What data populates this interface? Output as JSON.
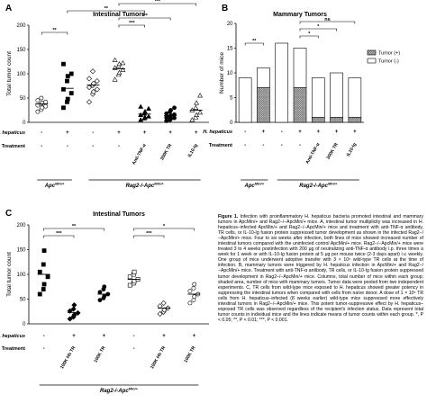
{
  "panels": {
    "A": {
      "letter": "A",
      "title": "Intestinal Tumors",
      "ylabel": "Total tumor count",
      "row1_label": "H. hepaticus",
      "row2_label": "Treatment",
      "h_hepaticus": [
        "-",
        "+",
        "-",
        "+",
        "+",
        "+",
        "+"
      ],
      "treatment": [
        "-",
        "-",
        "-",
        "-",
        "Anti-TNF-α",
        "300K TR",
        "IL10-Ig"
      ],
      "group_labels": [
        {
          "text": "Apc",
          "sup": "Min/+",
          "from": 0,
          "to": 1
        },
        {
          "text": "Rag2-/-Apc",
          "sup": "Min/+",
          "from": 2,
          "to": 6
        }
      ],
      "sig": [
        {
          "from": 0,
          "to": 1,
          "label": "**",
          "level": 0
        },
        {
          "from": 1,
          "to": 4,
          "label": "**",
          "level": 3
        },
        {
          "from": 3,
          "to": 4,
          "label": "***",
          "level": 1
        },
        {
          "from": 3,
          "to": 5,
          "label": "***",
          "level": 2
        },
        {
          "from": 3,
          "to": 6,
          "label": "***",
          "level": 4
        }
      ]
    },
    "B": {
      "letter": "B",
      "title": "Mammary Tumors",
      "ylabel": "Number of mice",
      "row1_label": "H. hepaticus",
      "row2_label": "Treatment",
      "h_hepaticus": [
        "-",
        "+",
        "-",
        "+",
        "+",
        "+",
        "+"
      ],
      "treatment": [
        "-",
        "-",
        "-",
        "-",
        "Anti-TNF-α",
        "300K TR",
        "IL10-Ig"
      ],
      "group_labels": [
        {
          "text": "Apc",
          "sup": "Min/+",
          "from": 0,
          "to": 1
        },
        {
          "text": "Rag2-/-Apc",
          "sup": "Min/+",
          "from": 2,
          "to": 6
        }
      ],
      "legend": {
        "pos": "Tumor (+)",
        "neg": "Tumor (-)"
      },
      "sig": [
        {
          "from": 0,
          "to": 1,
          "label": "**",
          "level": 0
        },
        {
          "from": 3,
          "to": 4,
          "label": "*",
          "level": 1
        },
        {
          "from": 3,
          "to": 5,
          "label": "*",
          "level": 2
        },
        {
          "from": 3,
          "to": 6,
          "label": "ns",
          "level": 3
        }
      ]
    },
    "C": {
      "letter": "C",
      "title": "Intestinal Tumors",
      "ylabel": "Total tumor count",
      "row1_label": "H. hepaticus",
      "row2_label": "Treatment",
      "h_hepaticus": [
        "-",
        "+",
        "+",
        "-",
        "+",
        "+"
      ],
      "treatment": [
        "-",
        "100K Hh TR",
        "100K TR",
        "-",
        "100K Hh TR",
        "100K TR"
      ],
      "group_labels": [
        {
          "text": "Rag2-/-Apc",
          "sup": "Min/+",
          "from": 0,
          "to": 5
        }
      ],
      "sig": [
        {
          "from": 0,
          "to": 1,
          "label": "***",
          "level": 0
        },
        {
          "from": 0,
          "to": 2,
          "label": "**",
          "level": 1
        },
        {
          "from": 3,
          "to": 4,
          "label": "***",
          "level": 0
        },
        {
          "from": 3,
          "to": 5,
          "label": "*",
          "level": 1
        }
      ]
    }
  },
  "caption": {
    "fig_num": "Figure 1.",
    "text": "Infection with proinflammatory H. hepaticus bacteria promoted intestinal and mammary tumors in ApcMin/+ and Rag2−/−ApcMin/+ mice. A, intestinal tumor multiplicity was increased in H. hepaticus–infected ApcMin/+ and Rag2−/−ApcMin/+ mice and treatment with anti-TNF-α antibody, TR cells, or IL-10-Ig fusion protein suppressed tumor development as shown in the infected Rag2−/−ApcMin/+ mice. Four to six weeks after infection, both lines of mice showed increased number of intestinal tumors compared with the uninfected control ApcMin/+ mice. Rag2−/−ApcMin/+ mice were treated 3 to 4 weeks postinfection with 200 μg of neutralizing anti-TNF-α antibody i.p. three times a week for 1 week or with IL-10-Ig fusion protein at 5 μg per mouse twice (2-3 days apart) i.v. weekly. One group of mice underwent adoptive transfer with 3 × 10⁵ wild-type TR cells at the time of infection. B, mammary tumors were triggered by H. hepaticus infection in ApcMin/+ and Rag2−/−ApcMin/+ mice. Treatment with anti-TNF-α antibody, TR cells, or IL-10-Ig fusion protein suppressed tumor development in Rag2−/−ApcMin/+ mice. Columns, total number of mice within each group; shaded area, number of mice with mammary tumors. Tumor data were pooled from two independent experiments. C, TR cells from wild-type mice exposed to H. hepaticus showed greater potency in suppressing the intestinal tumors when compared with cells from naïve donor. A dose of 1 × 10⁵ TR cells from H. hepaticus–infected (8 weeks earlier) wild-type mice suppressed more effectively intestinal tumors in Rag2−/−ApcMin/+ mice. This potent tumor-suppressive effect by H. hepaticus–exposed TR cells was observed regardless of the recipient's infection status. Data represent total tumor counts in individual mice and the lines indicate means of tumor counts within each group. *, P < 0.05; **, P < 0.01; ***, P < 0.001."
  },
  "colors": {
    "ink": "#000000",
    "hatch": "#555555",
    "open": "#ffffff"
  },
  "chart_data": [
    {
      "type": "scatter",
      "id": "A",
      "title": "Intestinal Tumors",
      "ylabel": "Total tumor count",
      "ylim": [
        0,
        200
      ],
      "yticks": [
        0,
        50,
        100,
        150,
        200
      ],
      "grid": false,
      "groups": [
        {
          "marker": "circle-open",
          "mean": 38,
          "values": [
            22,
            26,
            30,
            33,
            35,
            38,
            40,
            42,
            45,
            50
          ]
        },
        {
          "marker": "square-filled",
          "mean": 70,
          "values": [
            30,
            42,
            48,
            60,
            68,
            85,
            95,
            100,
            120
          ]
        },
        {
          "marker": "diamond-open",
          "mean": 77,
          "values": [
            42,
            58,
            63,
            68,
            72,
            76,
            80,
            85,
            90,
            105
          ]
        },
        {
          "marker": "triangle-open",
          "mean": 110,
          "values": [
            88,
            98,
            102,
            108,
            112,
            116,
            120,
            122,
            128
          ]
        },
        {
          "marker": "triangle-filled",
          "mean": 17,
          "values": [
            5,
            8,
            10,
            12,
            15,
            18,
            22,
            28,
            32
          ]
        },
        {
          "marker": "circle-filled",
          "mean": 14,
          "values": [
            3,
            5,
            7,
            9,
            10,
            12,
            14,
            16,
            18,
            22,
            25,
            30
          ]
        },
        {
          "marker": "triangle-open",
          "mean": 25,
          "values": [
            5,
            10,
            15,
            20,
            25,
            30,
            40,
            55
          ]
        }
      ]
    },
    {
      "type": "bar",
      "id": "B",
      "title": "Mammary Tumors",
      "ylabel": "Number of mice",
      "ylim": [
        0,
        20
      ],
      "yticks": [
        0,
        5,
        10,
        15,
        20
      ],
      "grid": false,
      "legend_position": "top-right",
      "series": [
        {
          "name": "Tumor (+)",
          "values": [
            0,
            7,
            0,
            7,
            1,
            1,
            1
          ]
        },
        {
          "name": "Tumor (-)",
          "values": [
            9,
            4,
            16,
            8,
            8,
            9,
            8
          ]
        }
      ]
    },
    {
      "type": "scatter",
      "id": "C",
      "title": "Intestinal Tumors",
      "ylabel": "Total tumor count",
      "ylim": [
        0,
        200
      ],
      "yticks": [
        0,
        50,
        100,
        150,
        200
      ],
      "grid": false,
      "groups": [
        {
          "marker": "square-filled",
          "mean": 100,
          "values": [
            60,
            70,
            80,
            95,
            105,
            120,
            148
          ]
        },
        {
          "marker": "diamond-filled",
          "mean": 23,
          "values": [
            10,
            14,
            18,
            22,
            26,
            30,
            38
          ]
        },
        {
          "marker": "circle-filled",
          "mean": 60,
          "values": [
            48,
            52,
            56,
            60,
            64,
            70,
            75
          ]
        },
        {
          "marker": "square-open",
          "mean": 90,
          "values": [
            78,
            82,
            86,
            90,
            95,
            100,
            105
          ]
        },
        {
          "marker": "diamond-open",
          "mean": 32,
          "values": [
            20,
            24,
            28,
            32,
            36,
            42
          ]
        },
        {
          "marker": "circle-open",
          "mean": 60,
          "values": [
            42,
            48,
            55,
            60,
            66,
            72,
            80
          ]
        }
      ]
    }
  ]
}
